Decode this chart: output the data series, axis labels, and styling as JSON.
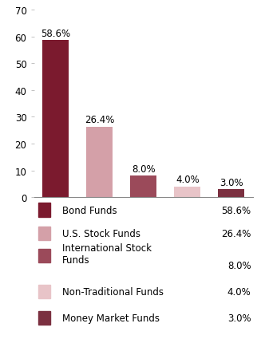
{
  "categories": [
    "Bond\nFunds",
    "U.S. Stock\nFunds",
    "International\nStock Funds",
    "Non-Traditional\nFunds",
    "Money Market\nFunds"
  ],
  "values": [
    58.6,
    26.4,
    8.0,
    4.0,
    3.0
  ],
  "bar_colors": [
    "#7B1A2E",
    "#D4A0A8",
    "#9B4A5A",
    "#E8C4C8",
    "#7B3040"
  ],
  "labels": [
    "58.6%",
    "26.4%",
    "8.0%",
    "4.0%",
    "3.0%"
  ],
  "ylim": [
    0,
    70
  ],
  "yticks": [
    0,
    10,
    20,
    30,
    40,
    50,
    60,
    70
  ],
  "background_color": "#ffffff",
  "legend_entries": [
    {
      "label": "Bond Funds",
      "value": "58.6%",
      "color": "#7B1A2E"
    },
    {
      "label": "U.S. Stock Funds",
      "value": "26.4%",
      "color": "#D4A0A8"
    },
    {
      "label": "International Stock\nFunds",
      "value": "8.0%",
      "color": "#9B4A5A"
    },
    {
      "label": "Non-Traditional Funds",
      "value": "4.0%",
      "color": "#E8C4C8"
    },
    {
      "label": "Money Market Funds",
      "value": "3.0%",
      "color": "#7B3040"
    }
  ],
  "label_fontsize": 8.5,
  "tick_fontsize": 8.5,
  "legend_fontsize": 8.5
}
